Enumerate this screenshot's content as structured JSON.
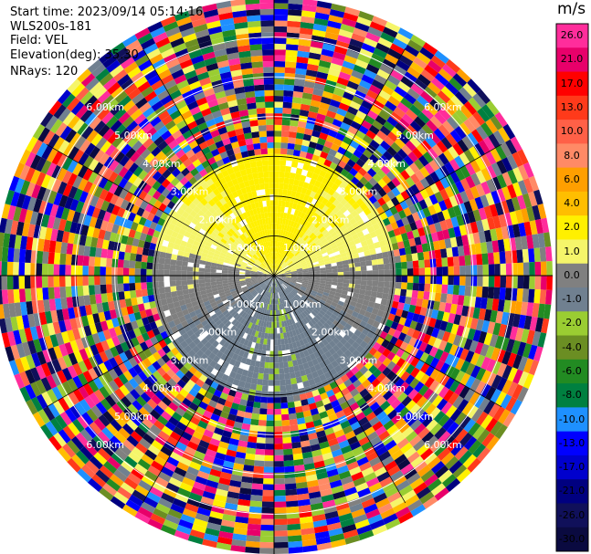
{
  "header": {
    "start_time": "Start time: 2023/09/14 05:14:16",
    "instrument": "WLS200s-181",
    "field": "Field: VEL",
    "elevation": "Elevation(deg): 35.30",
    "nrays": "NRays: 120"
  },
  "colorbar": {
    "unit": "m/s",
    "labels": [
      "26.0",
      "21.0",
      "17.0",
      "13.0",
      "10.0",
      "8.0",
      "6.0",
      "4.0",
      "2.0",
      "1.0",
      "0.0",
      "-1.0",
      "-2.0",
      "-4.0",
      "-6.0",
      "-8.0",
      "-10.0",
      "-13.0",
      "-17.0",
      "-21.0",
      "-26.0",
      "-30.0"
    ],
    "colors": [
      "#ff2d9b",
      "#e8006a",
      "#ff0000",
      "#ff3a1a",
      "#ff6047",
      "#ff8a66",
      "#ff9f00",
      "#ffbe00",
      "#fff000",
      "#f5f56a",
      "#808080",
      "#708090",
      "#9acd32",
      "#6b8e23",
      "#228b22",
      "#008040",
      "#1e90ff",
      "#0000ff",
      "#0000cd",
      "#000080",
      "#10105a",
      "#0a0a40"
    ]
  },
  "range_rings": {
    "labels": [
      "1.00km",
      "2.00km",
      "3.00km",
      "4.00km",
      "5.00km",
      "6.00km"
    ]
  },
  "chart_data": {
    "type": "ppi",
    "field": "VEL",
    "unit": "m/s",
    "elevation_deg": 35.3,
    "n_rays": 120,
    "vmin": -30.0,
    "vmax": 26.0,
    "range_km": [
      0,
      7
    ],
    "ring_km": [
      1,
      2,
      3,
      4,
      5,
      6
    ],
    "spoke_angles_deg": [
      0,
      30,
      60,
      90,
      120,
      150,
      180,
      210,
      240,
      270,
      300,
      330
    ],
    "valid_data_range_km": 3.2,
    "pattern": "Northern sector positive (2-6 m/s, yellow/orange), southern sector negative (-2 to -6 m/s, green), near-zero grey along east-west axis; noise beyond ~3 km."
  }
}
